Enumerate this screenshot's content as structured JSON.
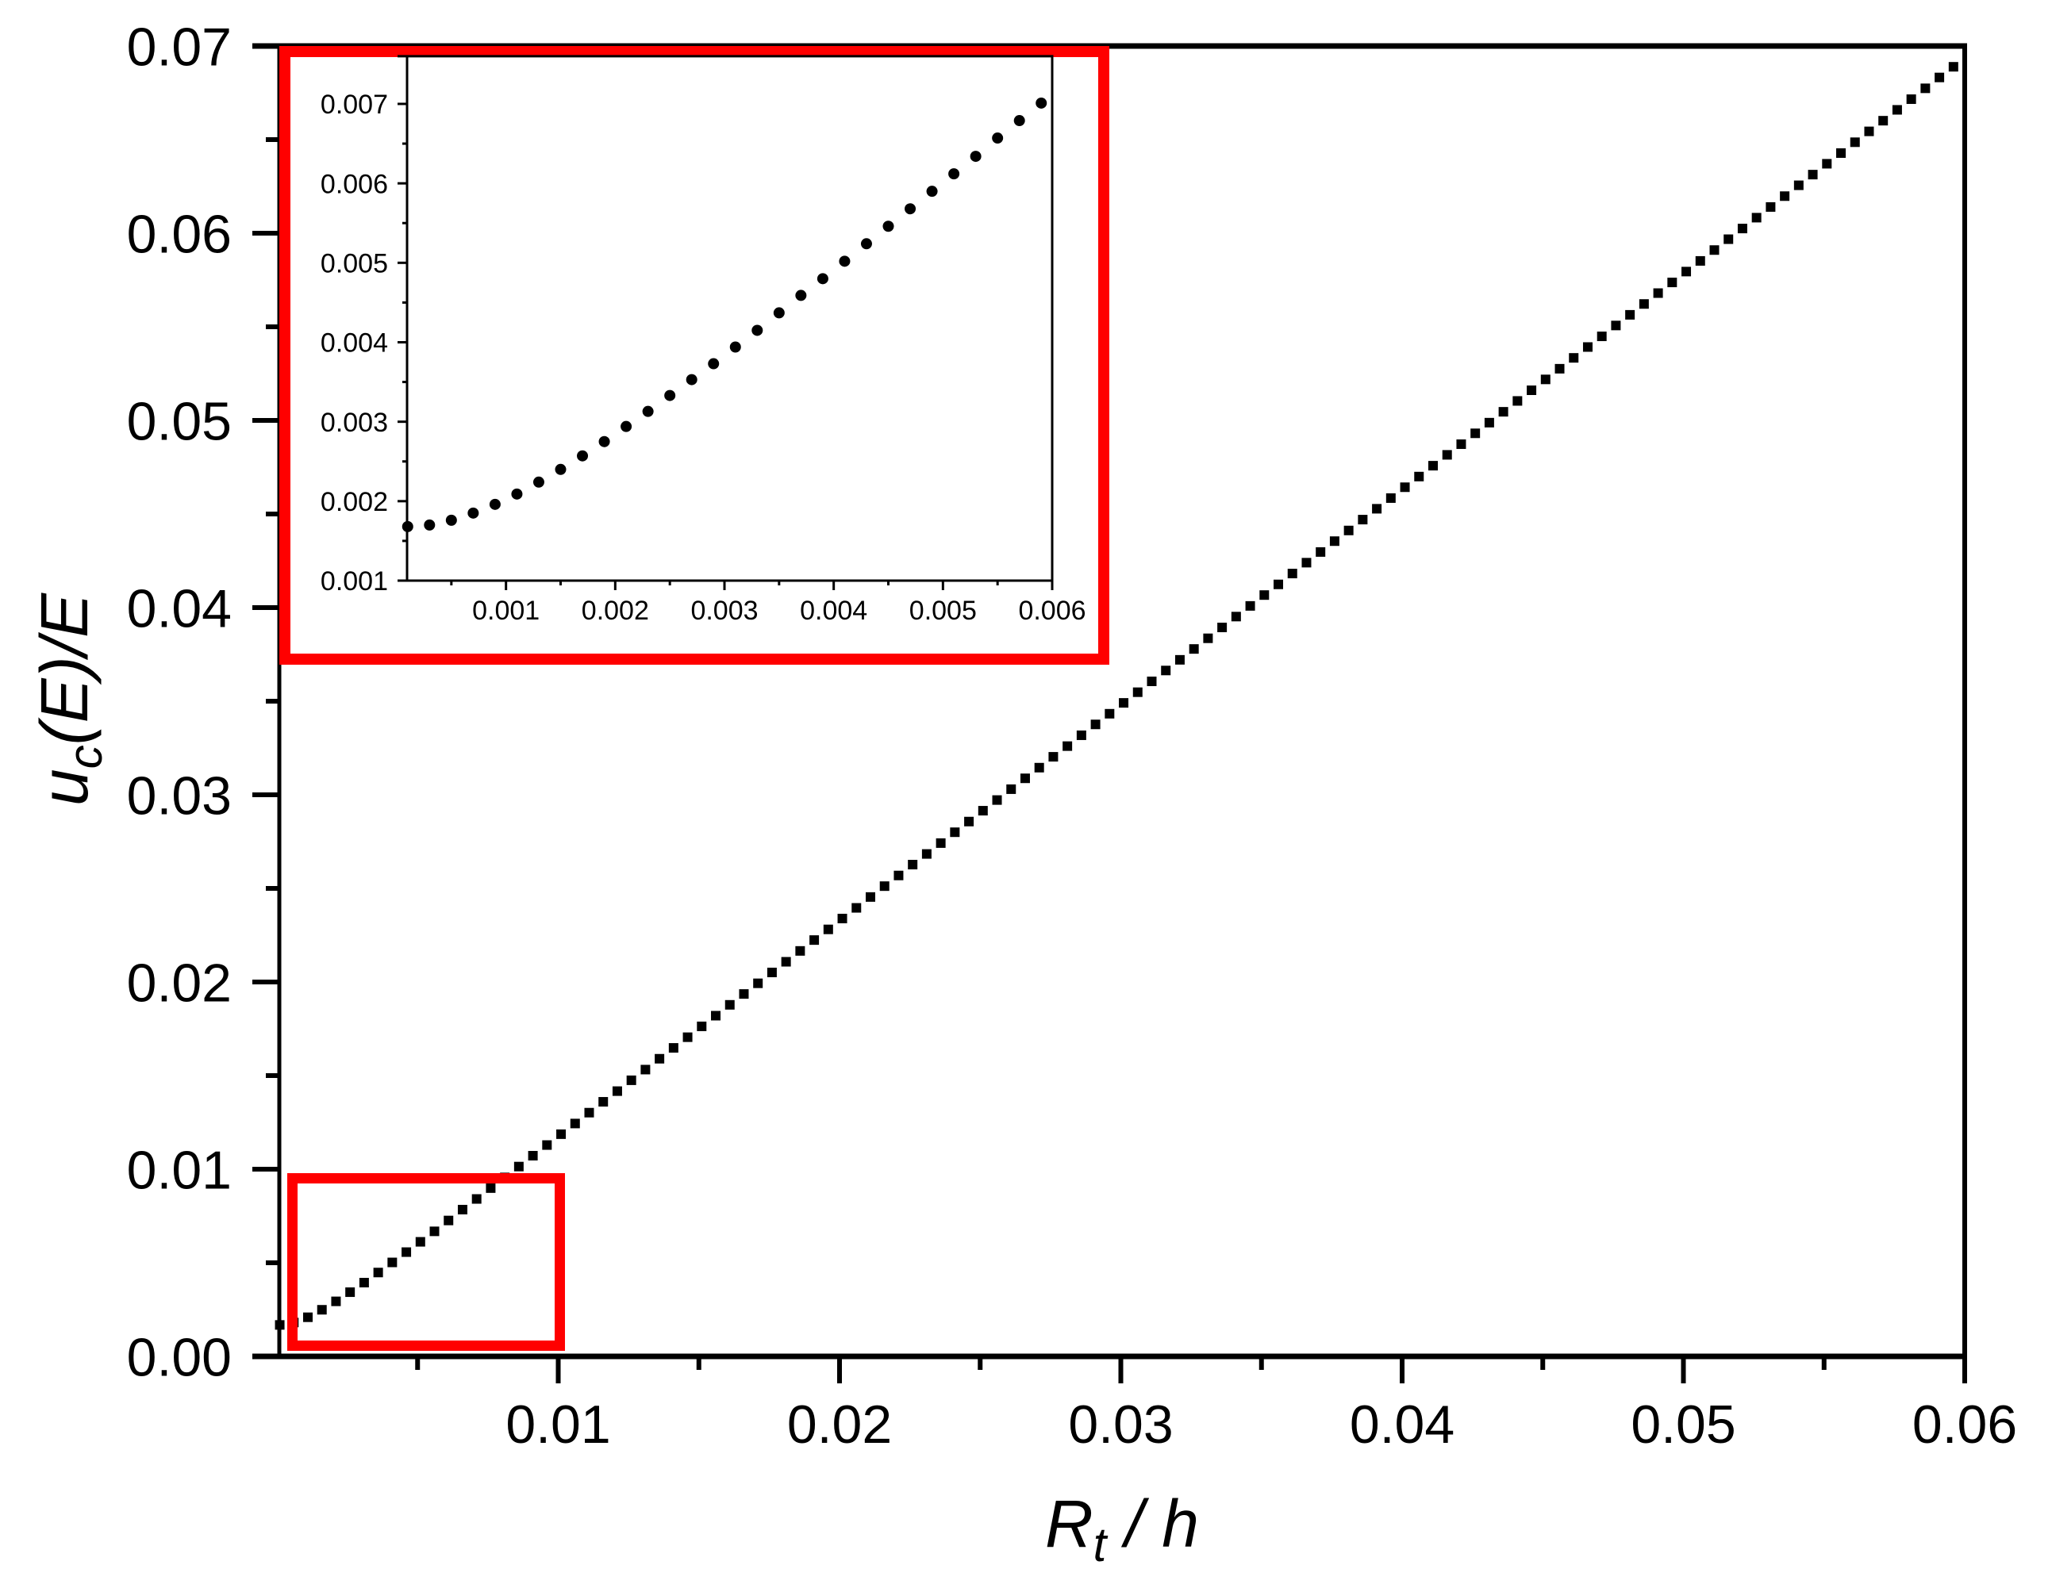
{
  "chart_data": [
    {
      "id": "main",
      "type": "scatter",
      "title": "",
      "xlabel": "R_t / h",
      "ylabel": "u_c(E)/E",
      "xlabel_parts": {
        "main": "R",
        "sub": "t",
        "rest": " / h"
      },
      "ylabel_parts": {
        "main": "u",
        "sub": "c",
        "rest": "(E)/E"
      },
      "xlim": [
        0,
        0.06
      ],
      "ylim": [
        0,
        0.07
      ],
      "x_ticks": [
        0.01,
        0.02,
        0.03,
        0.04,
        0.05,
        0.06
      ],
      "x_tick_labels": [
        "0.01",
        "0.02",
        "0.03",
        "0.04",
        "0.05",
        "0.06"
      ],
      "x_minor_ticks": [
        0.005,
        0.015,
        0.025,
        0.035,
        0.045,
        0.055
      ],
      "y_ticks": [
        0,
        0.01,
        0.02,
        0.03,
        0.04,
        0.05,
        0.06,
        0.07
      ],
      "y_tick_labels": [
        "0.00",
        "0.01",
        "0.02",
        "0.03",
        "0.04",
        "0.05",
        "0.06",
        "0.07"
      ],
      "y_minor_ticks": [
        0.005,
        0.015,
        0.025,
        0.035,
        0.045,
        0.055,
        0.065
      ],
      "grid": false,
      "legend": null,
      "marker": "square",
      "marker_color": "#000000",
      "series": [
        {
          "name": "u_c(E)/E",
          "x_start": 0.0001,
          "x_step": 0.0005,
          "y": [
            0.00168,
            0.00181,
            0.00209,
            0.00249,
            0.00294,
            0.00343,
            0.00394,
            0.00448,
            0.00502,
            0.00557,
            0.00612,
            0.00668,
            0.00726,
            0.00784,
            0.00841,
            0.00899,
            0.00956,
            0.01014,
            0.01072,
            0.01129,
            0.01187,
            0.01244,
            0.01302,
            0.0136,
            0.01417,
            0.01475,
            0.01532,
            0.0159,
            0.01648,
            0.01705,
            0.01763,
            0.0182,
            0.01878,
            0.01936,
            0.01993,
            0.02051,
            0.02108,
            0.02166,
            0.02224,
            0.02281,
            0.02339,
            0.02396,
            0.02454,
            0.02512,
            0.02569,
            0.02627,
            0.02684,
            0.02742,
            0.028,
            0.02857,
            0.02915,
            0.02972,
            0.0303,
            0.03088,
            0.03145,
            0.03203,
            0.0326,
            0.03318,
            0.03376,
            0.03433,
            0.03491,
            0.03548,
            0.03606,
            0.03664,
            0.03721,
            0.03779,
            0.03836,
            0.03894,
            0.03952,
            0.04009,
            0.04067,
            0.04124,
            0.04182,
            0.0424,
            0.04297,
            0.04355,
            0.04412,
            0.0447,
            0.04528,
            0.04585,
            0.04643,
            0.047,
            0.04758,
            0.04816,
            0.04873,
            0.04931,
            0.04988,
            0.05046,
            0.05104,
            0.05161,
            0.05219,
            0.05276,
            0.05334,
            0.05392,
            0.05449,
            0.05507,
            0.05564,
            0.05622,
            0.0568,
            0.05737,
            0.05795,
            0.05852,
            0.0591,
            0.05968,
            0.06025,
            0.06083,
            0.0614,
            0.06198,
            0.06256,
            0.06313,
            0.06371,
            0.06428,
            0.06486,
            0.06544,
            0.06601,
            0.06659,
            0.06716,
            0.06774,
            0.06832,
            0.06889
          ]
        }
      ],
      "annotations": [
        {
          "type": "highlight-box",
          "color": "#ff0000",
          "x_range": [
            0.0004,
            0.0102
          ],
          "y_range": [
            0.0003,
            0.0098
          ],
          "meaning": "zoom region shown in inset"
        },
        {
          "type": "inset-frame",
          "color": "#ff0000"
        }
      ]
    },
    {
      "id": "inset",
      "type": "scatter",
      "title": "",
      "xlabel": "",
      "ylabel": "",
      "xlim": [
        0,
        0.006
      ],
      "ylim": [
        0.001,
        0.0076
      ],
      "x_ticks": [
        0.001,
        0.002,
        0.003,
        0.004,
        0.005,
        0.006
      ],
      "x_tick_labels": [
        "0.001",
        "0.002",
        "0.003",
        "0.004",
        "0.005",
        "0.006"
      ],
      "x_minor_ticks": [
        0.0005,
        0.0015,
        0.0025,
        0.0035,
        0.0045,
        0.0055
      ],
      "y_ticks": [
        0.001,
        0.002,
        0.003,
        0.004,
        0.005,
        0.006,
        0.007
      ],
      "y_tick_labels": [
        "0.001",
        "0.002",
        "0.003",
        "0.004",
        "0.005",
        "0.006",
        "0.007"
      ],
      "y_minor_ticks": [
        0.0015,
        0.0025,
        0.0035,
        0.0045,
        0.0055,
        0.0065
      ],
      "grid": false,
      "legend": null,
      "marker": "circle",
      "marker_color": "#000000",
      "series": [
        {
          "name": "u_c(E)/E (zoom)",
          "x_start": 0.0001,
          "x_step": 0.0002,
          "y": [
            0.00168,
            0.0017,
            0.00176,
            0.00185,
            0.00196,
            0.00209,
            0.00224,
            0.0024,
            0.00257,
            0.00275,
            0.00294,
            0.00313,
            0.00333,
            0.00353,
            0.00373,
            0.00394,
            0.00415,
            0.00437,
            0.00459,
            0.0048,
            0.00502,
            0.00524,
            0.00546,
            0.00568,
            0.0059,
            0.00612,
            0.00634,
            0.00657,
            0.00679,
            0.00701
          ]
        }
      ]
    }
  ],
  "colors": {
    "axis": "#000000",
    "highlight": "#ff0000",
    "marker": "#000000",
    "background": "#ffffff"
  }
}
